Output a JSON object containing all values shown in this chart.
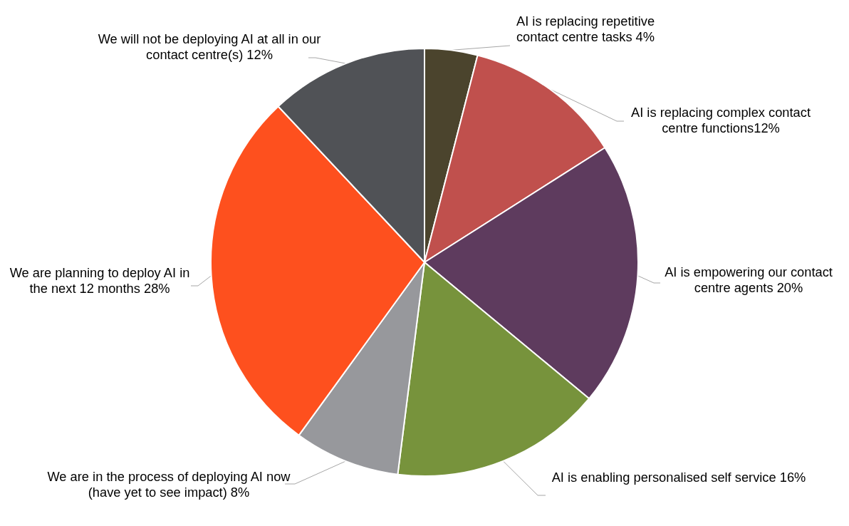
{
  "chart_data": {
    "type": "pie",
    "categories": [
      "AI is replacing repetitive\ncontact centre tasks ",
      "AI is replacing complex contact\ncentre functions",
      "AI is empowering our contact\ncentre agents ",
      "AI is enabling personalised self service ",
      "We are in the process of deploying AI now\n(have yet to see impact) ",
      "We are planning to deploy AI in\nthe next 12 months ",
      "We will not be deploying AI at all in our\ncontact centre(s) "
    ],
    "values": [
      4,
      12,
      20,
      16,
      8,
      28,
      12
    ],
    "value_labels": [
      "4%",
      "12%",
      "20%",
      "16%",
      "8%",
      "28%",
      "12%"
    ],
    "colors": [
      "#4b442d",
      "#c0504d",
      "#5e3b5e",
      "#77933c",
      "#97989c",
      "#fe501e",
      "#505256"
    ],
    "legend": false
  }
}
